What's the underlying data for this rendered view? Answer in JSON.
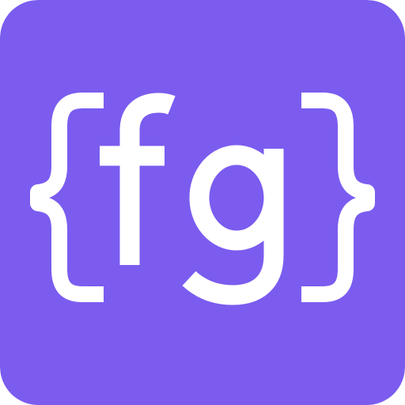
{
  "logo": {
    "text": "{fg}",
    "background_color": "#7B5CEF",
    "foreground_color": "#FFFFFF",
    "icon": "fg-logo-icon"
  }
}
